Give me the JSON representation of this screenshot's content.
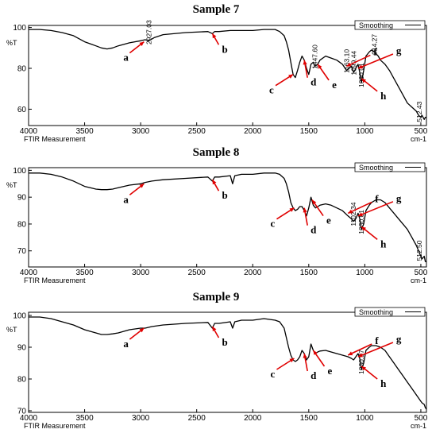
{
  "chart_data": [
    {
      "type": "line",
      "title": "Sample 7",
      "xlabel": "cm-1",
      "ylabel": "%T",
      "caption": "FTIR Measurement",
      "legend": "Smoothing",
      "legend_position": "top-right",
      "xlim": [
        4000,
        450
      ],
      "ylim": [
        52,
        101
      ],
      "x_ticks": [
        4000,
        3500,
        3000,
        2500,
        2000,
        1500,
        1000,
        500
      ],
      "y_ticks": [
        60,
        80,
        100
      ],
      "series": [
        {
          "x": [
            4000,
            3900,
            3800,
            3700,
            3600,
            3500,
            3450,
            3400,
            3350,
            3300,
            3250,
            3200,
            3100,
            3000,
            2960,
            2927,
            2880,
            2800,
            2600,
            2400,
            2360,
            2340,
            2300,
            2200,
            2000,
            1900,
            1800,
            1760,
            1720,
            1700,
            1680,
            1660,
            1640,
            1620,
            1600,
            1580,
            1560,
            1540,
            1520,
            1500,
            1480,
            1460,
            1447,
            1420,
            1400,
            1350,
            1300,
            1250,
            1200,
            1163,
            1140,
            1120,
            1099,
            1080,
            1060,
            1045,
            1030,
            1010,
            990,
            960,
            940,
            914,
            880,
            860,
            820,
            780,
            740,
            700,
            660,
            620,
            580,
            540,
            520,
            500,
            490,
            470,
            460,
            450
          ],
          "y": [
            99,
            99,
            98.5,
            97.5,
            96,
            93,
            92,
            91,
            90,
            89.5,
            90,
            91,
            92.5,
            93.5,
            94,
            93.5,
            95,
            96.5,
            97.5,
            98,
            97,
            98,
            98,
            98.5,
            98.5,
            99,
            99,
            98,
            96,
            93,
            89,
            83,
            77,
            75.5,
            79,
            83,
            86,
            84,
            80,
            77,
            82,
            83,
            81,
            82,
            84,
            86,
            85,
            84,
            82,
            79,
            80,
            81,
            78,
            80,
            82,
            78,
            73,
            79,
            86,
            88,
            89,
            88,
            86,
            84,
            82,
            79,
            75,
            71,
            67,
            63,
            61,
            59,
            57,
            56,
            57,
            55,
            56,
            56
          ]
        }
      ],
      "annotations": [
        {
          "letter": "a",
          "x": 2970,
          "y": 93
        },
        {
          "letter": "b",
          "x": 2360,
          "y": 97
        },
        {
          "letter": "c",
          "x": 1640,
          "y": 77
        },
        {
          "letter": "d",
          "x": 1540,
          "y": 84
        },
        {
          "letter": "e",
          "x": 1420,
          "y": 82
        },
        {
          "letter": "f",
          "x": 1163,
          "y": 81
        },
        {
          "letter": "g",
          "x": 1060,
          "y": 80
        },
        {
          "letter": "h",
          "x": 1030,
          "y": 75
        }
      ],
      "peak_labels": [
        "2927.03",
        "1447.60",
        "1163.10",
        "1099.44",
        "1030.01",
        "914.27",
        "512.43"
      ],
      "peak_label_x": [
        2927,
        1447,
        1163,
        1099,
        1030,
        914,
        512
      ],
      "peak_label_y": [
        94,
        82,
        80,
        79,
        73,
        89,
        56
      ]
    },
    {
      "type": "line",
      "title": "Sample 8",
      "xlabel": "cm-1",
      "ylabel": "%T",
      "caption": "FTIR Measurement",
      "legend": "Smoothing",
      "legend_position": "top-right",
      "xlim": [
        4000,
        450
      ],
      "ylim": [
        64,
        101
      ],
      "x_ticks": [
        4000,
        3500,
        3000,
        2500,
        2000,
        1500,
        1000,
        500
      ],
      "y_ticks": [
        70,
        80,
        90,
        100
      ],
      "series": [
        {
          "x": [
            4000,
            3900,
            3800,
            3700,
            3600,
            3500,
            3450,
            3400,
            3350,
            3300,
            3250,
            3200,
            3100,
            3000,
            2960,
            2900,
            2800,
            2600,
            2400,
            2360,
            2340,
            2300,
            2200,
            2180,
            2160,
            2100,
            2000,
            1900,
            1800,
            1760,
            1720,
            1700,
            1680,
            1660,
            1640,
            1620,
            1600,
            1580,
            1560,
            1540,
            1520,
            1500,
            1480,
            1460,
            1440,
            1420,
            1400,
            1350,
            1300,
            1250,
            1200,
            1150,
            1120,
            1102,
            1080,
            1060,
            1045,
            1030,
            1010,
            990,
            960,
            940,
            900,
            860,
            820,
            780,
            740,
            700,
            660,
            620,
            580,
            540,
            520,
            500,
            490,
            470,
            460,
            450
          ],
          "y": [
            99,
            99,
            98.5,
            97.5,
            96,
            94,
            93.5,
            93,
            92.8,
            92.8,
            93,
            93.5,
            94.5,
            95,
            95.5,
            96,
            96.5,
            97,
            97.5,
            96,
            97.5,
            97.5,
            98,
            95,
            98,
            98.5,
            98.5,
            99,
            99,
            98.5,
            97,
            95,
            92,
            88,
            86,
            85,
            85.5,
            86.5,
            86.5,
            85,
            83,
            86,
            90,
            87,
            86,
            86.5,
            87,
            87.5,
            87,
            86,
            85,
            83,
            82,
            81,
            82,
            84,
            82,
            78,
            80,
            85,
            87,
            88,
            89,
            89,
            88,
            86,
            84,
            82,
            80,
            78,
            75,
            72,
            70,
            68,
            67,
            68,
            66,
            66
          ]
        }
      ],
      "annotations": [
        {
          "letter": "a",
          "x": 2970,
          "y": 95
        },
        {
          "letter": "b",
          "x": 2360,
          "y": 96.5
        },
        {
          "letter": "c",
          "x": 1630,
          "y": 86
        },
        {
          "letter": "d",
          "x": 1540,
          "y": 86
        },
        {
          "letter": "e",
          "x": 1470,
          "y": 89
        },
        {
          "letter": "f",
          "x": 1150,
          "y": 84
        },
        {
          "letter": "g",
          "x": 1060,
          "y": 83
        },
        {
          "letter": "h",
          "x": 1030,
          "y": 79
        }
      ],
      "peak_labels": [
        "1102.34",
        "1030.01",
        "512.50"
      ],
      "peak_label_x": [
        1102,
        1030,
        512
      ],
      "peak_label_y": [
        81,
        78,
        68
      ]
    },
    {
      "type": "line",
      "title": "Sample 9",
      "xlabel": "cm-1",
      "ylabel": "%T",
      "caption": "FTIR Measurement",
      "legend": "Smoothing",
      "legend_position": "top-right",
      "xlim": [
        4000,
        450
      ],
      "ylim": [
        69.5,
        101
      ],
      "x_ticks": [
        4000,
        3500,
        3000,
        2500,
        2000,
        1500,
        1000,
        500
      ],
      "y_ticks": [
        70,
        80,
        90,
        100
      ],
      "series": [
        {
          "x": [
            4000,
            3900,
            3800,
            3700,
            3600,
            3500,
            3450,
            3400,
            3350,
            3300,
            3250,
            3200,
            3100,
            3000,
            2960,
            2900,
            2800,
            2600,
            2400,
            2360,
            2340,
            2300,
            2200,
            2180,
            2160,
            2100,
            2000,
            1900,
            1800,
            1760,
            1720,
            1700,
            1680,
            1660,
            1640,
            1620,
            1600,
            1580,
            1560,
            1540,
            1520,
            1500,
            1480,
            1460,
            1440,
            1420,
            1400,
            1350,
            1300,
            1250,
            1200,
            1150,
            1120,
            1100,
            1080,
            1060,
            1045,
            1030,
            1010,
            990,
            960,
            940,
            900,
            860,
            820,
            780,
            740,
            700,
            660,
            620,
            580,
            540,
            520,
            500,
            490,
            470,
            460,
            450
          ],
          "y": [
            99.5,
            99.5,
            99,
            98,
            97,
            95.5,
            95,
            94.5,
            94,
            94,
            94.2,
            94.5,
            95.5,
            96,
            96,
            96.5,
            97,
            97.5,
            97.8,
            96,
            97.5,
            97.5,
            98,
            96,
            98,
            98.5,
            98.5,
            99,
            98.5,
            98,
            96,
            93,
            90,
            87.5,
            86,
            85.5,
            86,
            87,
            89,
            88,
            86,
            87,
            91,
            89,
            88,
            88.5,
            88.8,
            89,
            88.5,
            88,
            87.5,
            87,
            86.5,
            86,
            87,
            88,
            86.5,
            83,
            85,
            89,
            90,
            90.5,
            90.5,
            90,
            89,
            87,
            85,
            83,
            81,
            79,
            77,
            75,
            74,
            73,
            72.5,
            72,
            71,
            70.5
          ]
        }
      ],
      "annotations": [
        {
          "letter": "a",
          "x": 2970,
          "y": 96
        },
        {
          "letter": "b",
          "x": 2360,
          "y": 96.5
        },
        {
          "letter": "c",
          "x": 1630,
          "y": 86.5
        },
        {
          "letter": "d",
          "x": 1540,
          "y": 88
        },
        {
          "letter": "e",
          "x": 1460,
          "y": 89
        },
        {
          "letter": "f",
          "x": 1150,
          "y": 87.5
        },
        {
          "letter": "g",
          "x": 1060,
          "y": 87
        },
        {
          "letter": "h",
          "x": 1030,
          "y": 84
        }
      ],
      "peak_labels": [
        "1030.97"
      ],
      "peak_label_x": [
        1030
      ],
      "peak_label_y": [
        83
      ]
    }
  ]
}
